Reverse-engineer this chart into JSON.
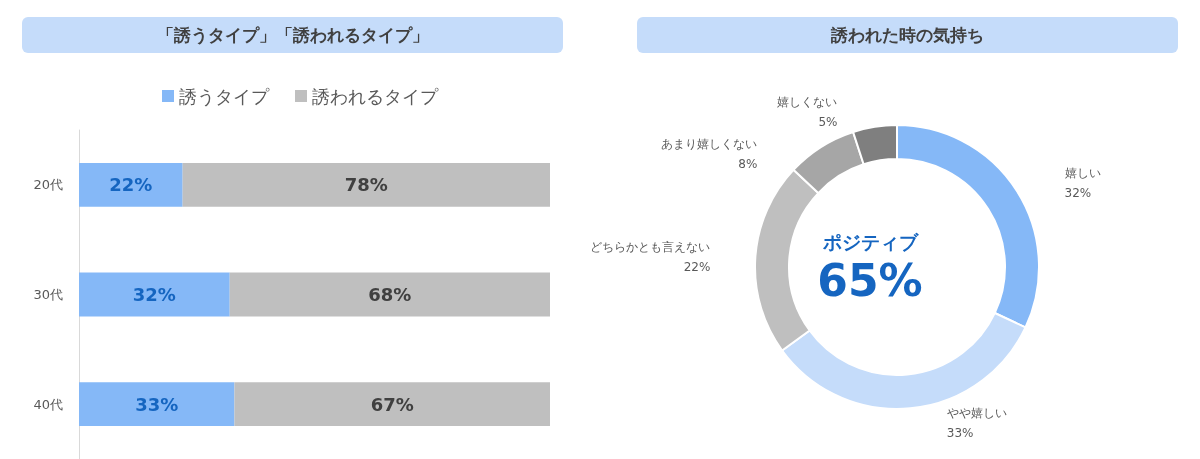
{
  "chart_data": [
    {
      "type": "bar",
      "title": "「誘うタイプ」「誘われるタイプ」",
      "orientation": "horizontal",
      "stacked": true,
      "legend": "top",
      "categories": [
        "20代",
        "30代",
        "40代"
      ],
      "series": [
        {
          "name": "誘うタイプ",
          "color": "#85b8f7",
          "values": [
            22,
            32,
            33
          ],
          "value_labels": [
            "22%",
            "32%",
            "33%"
          ]
        },
        {
          "name": "誘われるタイプ",
          "color": "#bfbfbf",
          "values": [
            78,
            68,
            67
          ],
          "value_labels": [
            "78%",
            "68%",
            "67%"
          ]
        }
      ]
    },
    {
      "type": "donut",
      "title": "誘われた時の気持ち",
      "categories": [
        "嬉しい",
        "やや嬉しい",
        "どちらかとも言えない",
        "あまり嬉しくない",
        "嬉しくない"
      ],
      "values": [
        32,
        33,
        22,
        8,
        5
      ],
      "colors": [
        "#85b8f7",
        "#c5dcfa",
        "#bfbfbf",
        "#a6a6a6",
        "#7f7f7f"
      ],
      "value_labels": [
        "32%",
        "33%",
        "22%",
        "8%",
        "5%"
      ],
      "annotations": [
        "ポジティブ",
        "65%"
      ]
    }
  ]
}
